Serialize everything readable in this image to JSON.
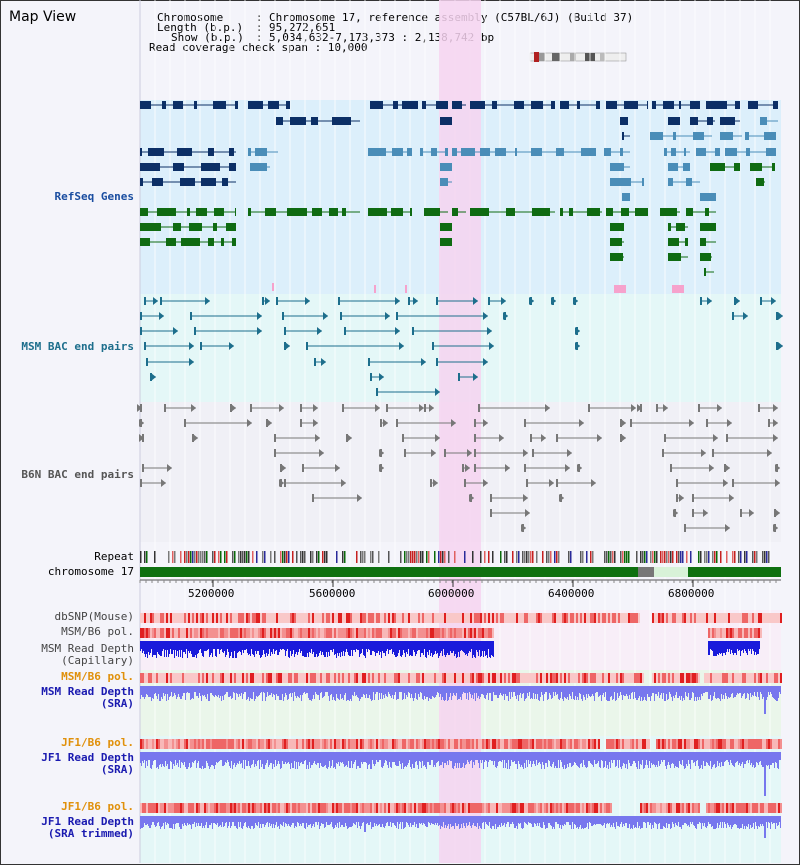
{
  "window_title": "Map View",
  "header": {
    "chromosome_key": "Chromosome",
    "chromosome_val": "Chromosome 17, reference assembly (C57BL/6J) (Build 37)",
    "length_key": "Length (b.p.)",
    "length_val": "95,272,651",
    "show_key": "Show (b.p.)",
    "show_val": "5,034,632-7,173,373 : 2,138,742 bp",
    "read_coverage": "Read coverage check span : 10,000"
  },
  "tracks": {
    "refseq": "RefSeq Genes",
    "msm_bac": "MSM BAC end pairs",
    "b6n_bac": "B6N BAC end pairs",
    "repeat": "Repeat",
    "chromosome": "chromosome 17",
    "dbsnp": "dbSNP(Mouse)",
    "msm_b6_pol": "MSM/B6 pol.",
    "msm_depth_1": "MSM Read Depth",
    "msm_depth_2": "(Capillary)",
    "msm_b6_pol_2": "MSM/B6 pol.",
    "msm_sra_1": "MSM Read Depth",
    "msm_sra_2": "(SRA)",
    "jf1_b6_pol": "JF1/B6 pol.",
    "jf1_sra_1": "JF1 Read Depth",
    "jf1_sra_2": "(SRA)",
    "jf1_b6_pol_2": "JF1/B6 pol.",
    "jf1_trim_1": "JF1 Read Depth",
    "jf1_trim_2": "(SRA trimmed)"
  },
  "axis_ticks": [
    "5200000",
    "5600000",
    "6000000",
    "6400000",
    "6800000"
  ],
  "colors": {
    "refseq_bg": "#dceffb",
    "bac_bg": "#e4f7f7",
    "highlight": "#f6d4f0",
    "gene_dark": "#0c2f66",
    "gene_mid": "#4a8db8",
    "gene_green": "#0f6b12",
    "msm_bac": "#1d6e8c",
    "b6n_bac": "#777777",
    "depth_cap": "#1a1adb",
    "depth_sra": "#7777ee",
    "pol_red": "#e84040",
    "chrom_green": "#0e7010"
  }
}
